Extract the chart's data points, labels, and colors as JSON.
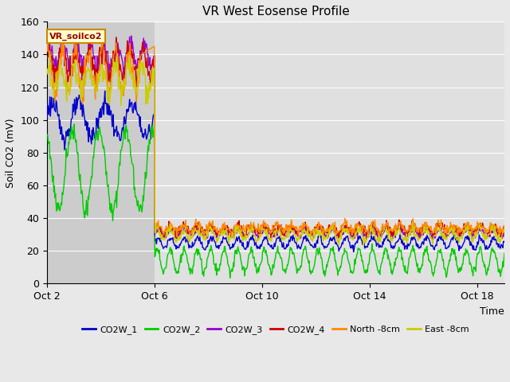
{
  "title": "VR West Eosense Profile",
  "xlabel": "Time",
  "ylabel": "Soil CO2 (mV)",
  "ylim": [
    0,
    160
  ],
  "yticks": [
    0,
    20,
    40,
    60,
    80,
    100,
    120,
    140,
    160
  ],
  "xtick_labels": [
    "Oct 2",
    "Oct 6",
    "Oct 10",
    "Oct 14",
    "Oct 18"
  ],
  "xtick_positions": [
    0,
    4,
    8,
    12,
    16
  ],
  "xlim": [
    0,
    17
  ],
  "fig_bg_color": "#e8e8e8",
  "plot_bg_color_before": "#cccccc",
  "plot_bg_color_after": "#e0e0e0",
  "annotation_text": "VR_soilco2",
  "annotation_bg": "#ffffcc",
  "annotation_border": "#cc8800",
  "legend_entries": [
    "CO2W_1",
    "CO2W_2",
    "CO2W_3",
    "CO2W_4",
    "North -8cm",
    "East -8cm"
  ],
  "line_colors": [
    "#0000cc",
    "#00cc00",
    "#9900cc",
    "#cc0000",
    "#ff8800",
    "#cccc00"
  ],
  "series_linewidth": 1.0,
  "title_fontsize": 11,
  "label_fontsize": 9,
  "transition_day": 4.0,
  "total_days": 17
}
